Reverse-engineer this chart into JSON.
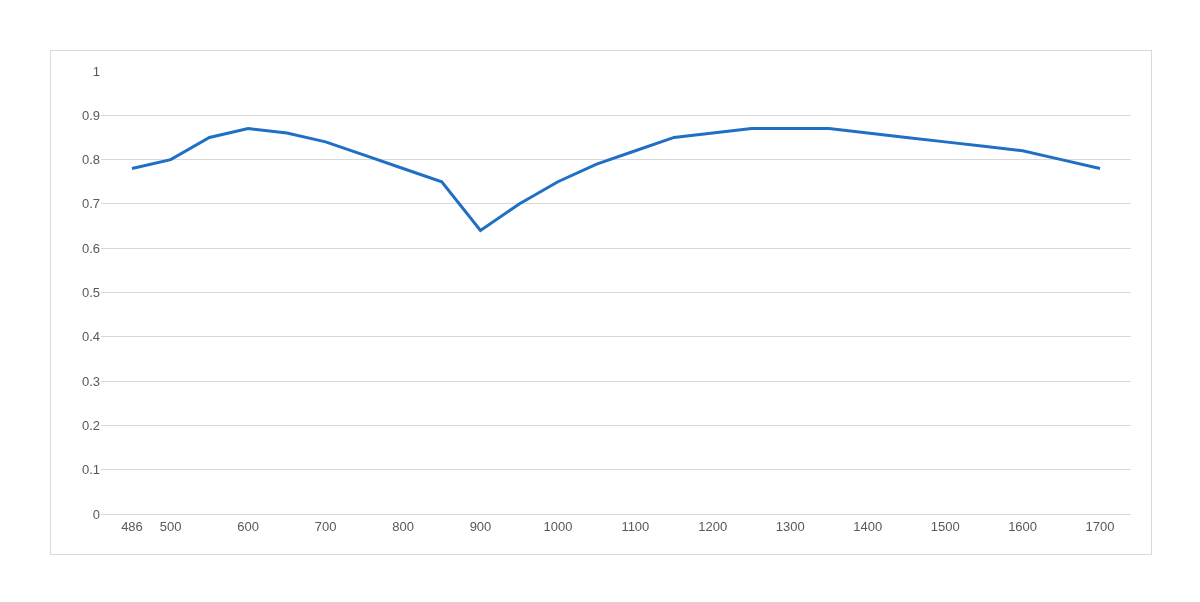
{
  "chart_data": {
    "type": "line",
    "categories": [
      "486",
      "500",
      null,
      "600",
      null,
      "700",
      null,
      "800",
      null,
      "900",
      null,
      "1000",
      null,
      "1100",
      null,
      "1200",
      null,
      "1300",
      null,
      "1400",
      null,
      "1500",
      null,
      "1600",
      null,
      "1700"
    ],
    "series": [
      {
        "color": "#1f6fc5",
        "values": [
          0.78,
          0.8,
          0.85,
          0.87,
          0.86,
          0.84,
          0.81,
          0.78,
          0.75,
          0.64,
          0.7,
          0.75,
          0.79,
          0.82,
          0.85,
          0.86,
          0.87,
          0.87,
          0.87,
          0.86,
          0.85,
          0.84,
          0.83,
          0.82,
          0.8,
          0.78
        ]
      }
    ],
    "ylim": [
      0,
      1
    ],
    "yticks": [
      0,
      0.1,
      0.2,
      0.3,
      0.4,
      0.5,
      0.6,
      0.7,
      0.8,
      0.9,
      1
    ],
    "grid": "y",
    "marker": "none",
    "line_style": "solid",
    "legend": false
  }
}
